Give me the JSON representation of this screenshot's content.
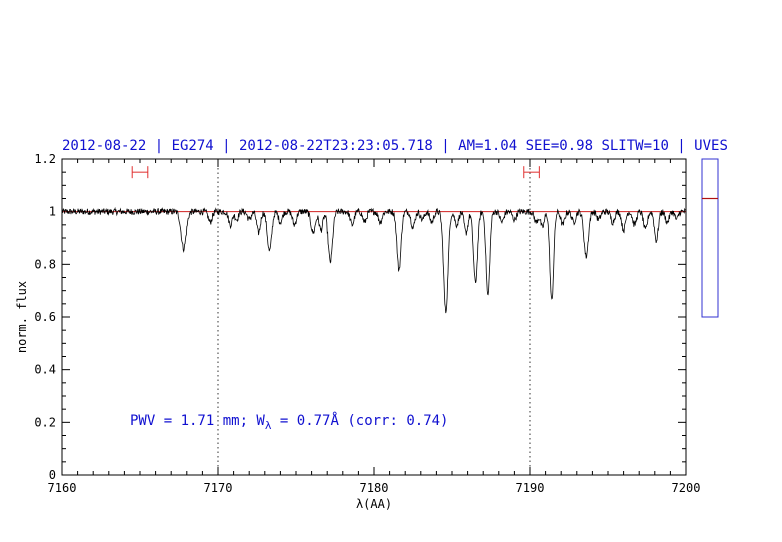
{
  "chart_data": {
    "type": "line",
    "title": "2012-08-22 | EG274 | 2012-08-22T23:23:05.718 | AM=1.04  SEE=0.98  SLITW=10 | UVES",
    "xlabel": "λ(AA)",
    "ylabel": "norm. flux",
    "xlim": [
      7160,
      7200
    ],
    "ylim": [
      0,
      1.2
    ],
    "x_ticks": [
      7160,
      7170,
      7180,
      7190,
      7200
    ],
    "y_ticks": [
      0,
      0.2,
      0.4,
      0.6,
      0.8,
      1,
      1.2
    ],
    "x_tick_labels": [
      "7160",
      "7170",
      "7180",
      "7190",
      "7200"
    ],
    "y_tick_labels": [
      "0",
      "0.2",
      "0.4",
      "0.6",
      "0.8",
      "1",
      "1.2"
    ],
    "grid": false,
    "vertical_dotted_lines": [
      7170,
      7190
    ],
    "continuum_level": 1.0,
    "annotation": {
      "pwv_text": "PWV = 1.71 mm; W",
      "w_sub": "λ",
      "w_text": " = 0.77Å (corr: 0.74)",
      "x": 7165,
      "y": 0.19
    },
    "range_markers": [
      {
        "from": 7164.5,
        "to": 7165.5,
        "y": 1.15
      },
      {
        "from": 7189.6,
        "to": 7190.6,
        "y": 1.15
      }
    ],
    "absorption_lines": [
      {
        "x": 7167.8,
        "depth": 0.14,
        "width": 0.16
      },
      {
        "x": 7169.5,
        "depth": 0.04,
        "width": 0.12
      },
      {
        "x": 7170.8,
        "depth": 0.05,
        "width": 0.12
      },
      {
        "x": 7171.2,
        "depth": 0.03,
        "width": 0.1
      },
      {
        "x": 7172.0,
        "depth": 0.03,
        "width": 0.12
      },
      {
        "x": 7172.6,
        "depth": 0.08,
        "width": 0.12
      },
      {
        "x": 7173.3,
        "depth": 0.15,
        "width": 0.14
      },
      {
        "x": 7174.0,
        "depth": 0.04,
        "width": 0.12
      },
      {
        "x": 7174.9,
        "depth": 0.05,
        "width": 0.12
      },
      {
        "x": 7176.1,
        "depth": 0.08,
        "width": 0.14
      },
      {
        "x": 7176.6,
        "depth": 0.07,
        "width": 0.12
      },
      {
        "x": 7177.2,
        "depth": 0.19,
        "width": 0.14
      },
      {
        "x": 7178.6,
        "depth": 0.05,
        "width": 0.12
      },
      {
        "x": 7179.4,
        "depth": 0.04,
        "width": 0.12
      },
      {
        "x": 7180.4,
        "depth": 0.04,
        "width": 0.12
      },
      {
        "x": 7181.6,
        "depth": 0.22,
        "width": 0.13
      },
      {
        "x": 7182.5,
        "depth": 0.06,
        "width": 0.12
      },
      {
        "x": 7183.1,
        "depth": 0.03,
        "width": 0.12
      },
      {
        "x": 7183.7,
        "depth": 0.04,
        "width": 0.12
      },
      {
        "x": 7184.6,
        "depth": 0.38,
        "width": 0.14
      },
      {
        "x": 7185.3,
        "depth": 0.05,
        "width": 0.12
      },
      {
        "x": 7185.9,
        "depth": 0.08,
        "width": 0.12
      },
      {
        "x": 7186.5,
        "depth": 0.27,
        "width": 0.13
      },
      {
        "x": 7187.3,
        "depth": 0.32,
        "width": 0.12
      },
      {
        "x": 7188.2,
        "depth": 0.04,
        "width": 0.12
      },
      {
        "x": 7189.0,
        "depth": 0.03,
        "width": 0.12
      },
      {
        "x": 7190.4,
        "depth": 0.04,
        "width": 0.12
      },
      {
        "x": 7190.8,
        "depth": 0.06,
        "width": 0.12
      },
      {
        "x": 7191.4,
        "depth": 0.34,
        "width": 0.12
      },
      {
        "x": 7192.1,
        "depth": 0.05,
        "width": 0.12
      },
      {
        "x": 7192.8,
        "depth": 0.04,
        "width": 0.12
      },
      {
        "x": 7193.6,
        "depth": 0.17,
        "width": 0.14
      },
      {
        "x": 7194.4,
        "depth": 0.03,
        "width": 0.12
      },
      {
        "x": 7195.3,
        "depth": 0.04,
        "width": 0.12
      },
      {
        "x": 7196.0,
        "depth": 0.07,
        "width": 0.12
      },
      {
        "x": 7196.7,
        "depth": 0.05,
        "width": 0.12
      },
      {
        "x": 7197.4,
        "depth": 0.07,
        "width": 0.12
      },
      {
        "x": 7198.1,
        "depth": 0.11,
        "width": 0.12
      },
      {
        "x": 7198.8,
        "depth": 0.04,
        "width": 0.12
      },
      {
        "x": 7199.4,
        "depth": 0.03,
        "width": 0.1
      }
    ],
    "noise_amplitude": 0.012,
    "series_color": "#000000",
    "continuum_color": "#d02020",
    "side_panel": {
      "ylim": [
        0.6,
        1.2
      ],
      "marker_level": 1.05,
      "marker_color": "#b01010",
      "frame_color": "#3030d0"
    }
  }
}
